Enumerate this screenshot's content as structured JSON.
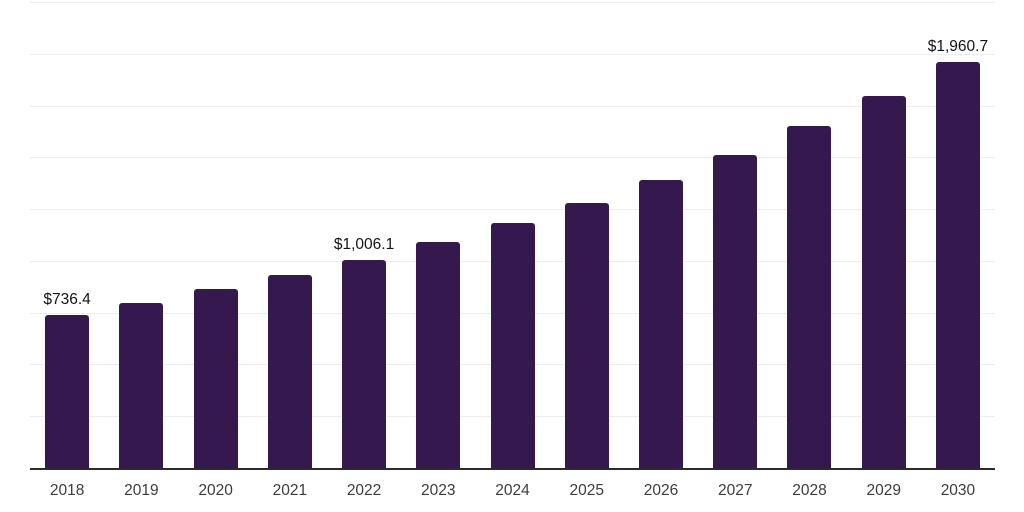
{
  "chart_data": {
    "type": "bar",
    "title": "",
    "xlabel": "",
    "ylabel": "",
    "categories": [
      "2018",
      "2019",
      "2020",
      "2021",
      "2022",
      "2023",
      "2024",
      "2025",
      "2026",
      "2027",
      "2028",
      "2029",
      "2030"
    ],
    "values": [
      736.4,
      798.0,
      866.0,
      931.0,
      1006.1,
      1090.5,
      1183.5,
      1280.0,
      1392.0,
      1512.0,
      1650.0,
      1795.0,
      1960.7
    ],
    "data_labels": {
      "2018": "$736.4",
      "2022": "$1,006.1",
      "2030": "$1,960.7"
    },
    "ylim": [
      0,
      2250
    ],
    "gridline_interval": 250,
    "grid": "horizontal-only",
    "legend": "none",
    "y_axis_tick_labels_visible": false,
    "colors": {
      "bar": "#35194E",
      "gridline": "#ececec",
      "axis_line": "#2b2b2b",
      "value_label": "#141414",
      "tick_label": "#3c3c3c",
      "background": "#ffffff"
    }
  }
}
